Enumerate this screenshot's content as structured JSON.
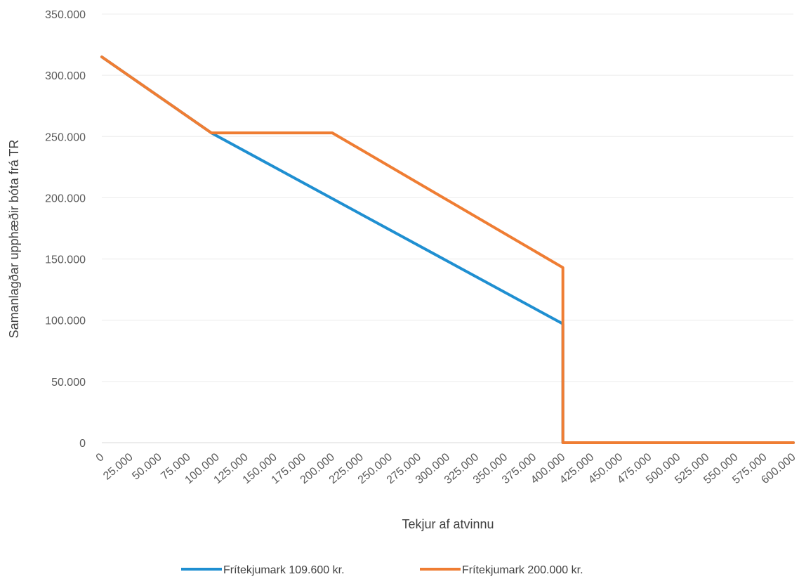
{
  "chart_data": {
    "type": "line",
    "xlabel": "Tekjur af atvinnu",
    "ylabel": "Samanlagðar upphæðir bóta frá TR",
    "x_tick_labels": [
      "0",
      "25.000",
      "50.000",
      "75.000",
      "100.000",
      "125.000",
      "150.000",
      "175.000",
      "200.000",
      "225.000",
      "250.000",
      "275.000",
      "300.000",
      "325.000",
      "350.000",
      "375.000",
      "400.000",
      "425.000",
      "450.000",
      "475.000",
      "500.000",
      "525.000",
      "550.000",
      "575.000",
      "600.000"
    ],
    "y_tick_labels": [
      "0",
      "50.000",
      "100.000",
      "150.000",
      "200.000",
      "250.000",
      "300.000",
      "350.000"
    ],
    "xlim": [
      0,
      600000
    ],
    "ylim": [
      0,
      350000
    ],
    "grid": true,
    "legend_position": "bottom",
    "series": [
      {
        "name": "Frítekjumark 109.600 kr.",
        "color": "#1f8fd1",
        "points": [
          [
            0,
            315000
          ],
          [
            95000,
            253000
          ],
          [
            400000,
            97000
          ],
          [
            400000,
            0
          ],
          [
            600000,
            0
          ]
        ]
      },
      {
        "name": "Frítekjumark 200.000 kr.",
        "color": "#ef7d33",
        "points": [
          [
            0,
            315000
          ],
          [
            95000,
            253000
          ],
          [
            200000,
            253000
          ],
          [
            400000,
            143000
          ],
          [
            400000,
            0
          ],
          [
            600000,
            0
          ]
        ]
      }
    ]
  }
}
